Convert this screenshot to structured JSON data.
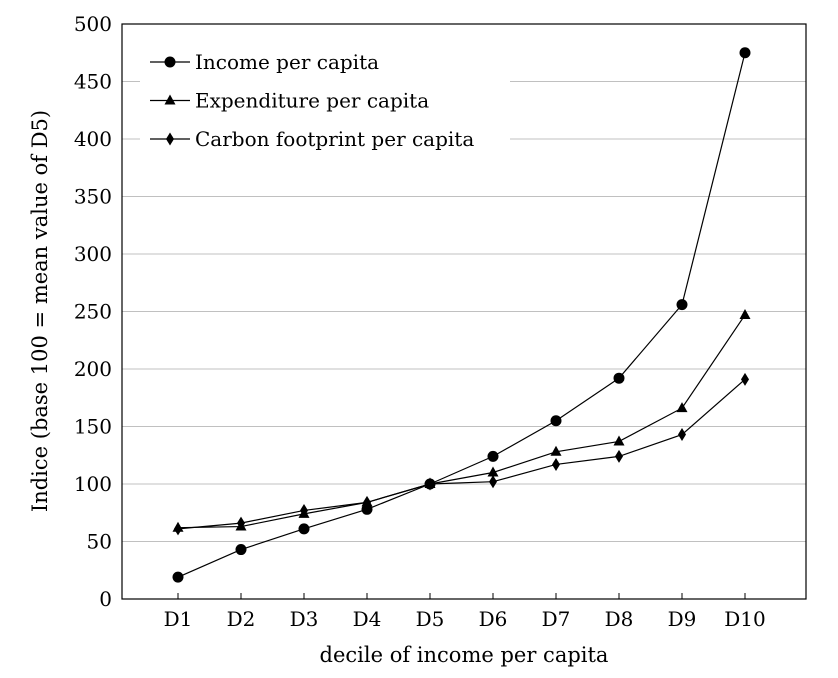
{
  "chart_data": {
    "type": "line",
    "title": "",
    "xlabel": "decile of income per capita",
    "ylabel": "Indice (base 100 = mean value of D5)",
    "categories": [
      "D1",
      "D2",
      "D3",
      "D4",
      "D5",
      "D6",
      "D7",
      "D8",
      "D9",
      "D10"
    ],
    "ylim": [
      0,
      500
    ],
    "yticks": [
      0,
      50,
      100,
      150,
      200,
      250,
      300,
      350,
      400,
      450,
      500
    ],
    "grid": "horizontal",
    "legend_position": "top-left",
    "series": [
      {
        "name": "Income per capita",
        "marker": "circle",
        "values": [
          19,
          43,
          61,
          78,
          100,
          124,
          155,
          192,
          256,
          475
        ]
      },
      {
        "name": "Expenditure per capita",
        "marker": "triangle",
        "values": [
          62,
          63,
          74,
          84,
          100,
          110,
          128,
          137,
          166,
          247
        ]
      },
      {
        "name": "Carbon footprint per capita",
        "marker": "diamond",
        "values": [
          61,
          66,
          77,
          84,
          100,
          102,
          117,
          124,
          143,
          191
        ]
      }
    ]
  }
}
